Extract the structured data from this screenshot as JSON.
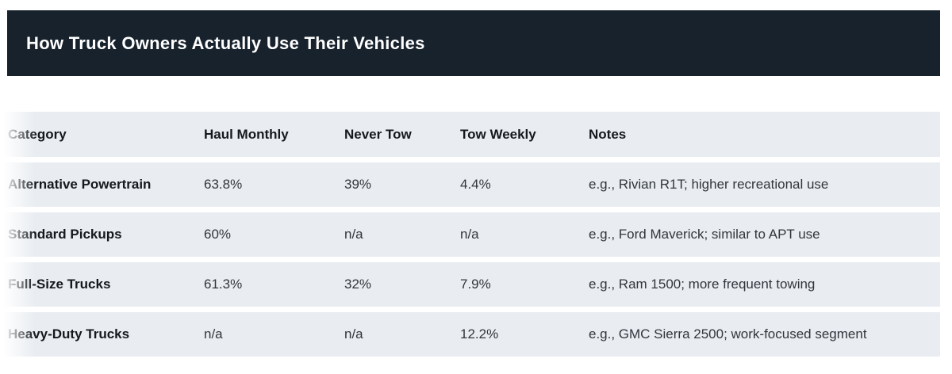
{
  "header": {
    "title": "How Truck Owners Actually Use Their Vehicles"
  },
  "table": {
    "columns": [
      "Category",
      "Haul Monthly",
      "Never Tow",
      "Tow Weekly",
      "Notes"
    ],
    "rows": [
      {
        "category": "Alternative Powertrain",
        "haul_monthly": "63.8%",
        "never_tow": "39%",
        "tow_weekly": "4.4%",
        "notes": "e.g., Rivian R1T; higher recreational use"
      },
      {
        "category": "Standard Pickups",
        "haul_monthly": "60%",
        "never_tow": "n/a",
        "tow_weekly": "n/a",
        "notes": "e.g., Ford Maverick; similar to APT use"
      },
      {
        "category": "Full-Size Trucks",
        "haul_monthly": "61.3%",
        "never_tow": "32%",
        "tow_weekly": "7.9%",
        "notes": "e.g., Ram 1500; more frequent towing"
      },
      {
        "category": "Heavy-Duty Trucks",
        "haul_monthly": "n/a",
        "never_tow": "n/a",
        "tow_weekly": "12.2%",
        "notes": "e.g., GMC Sierra 2500; work-focused segment"
      }
    ]
  },
  "colors": {
    "title_bar_bg": "#17222d",
    "title_text": "#ffffff",
    "row_bg": "#e9edf1",
    "heading_text": "#15191e",
    "body_text": "#31363c",
    "page_bg": "#ffffff"
  },
  "chart_data": {
    "type": "table",
    "title": "How Truck Owners Actually Use Their Vehicles",
    "columns": [
      "Category",
      "Haul Monthly",
      "Never Tow",
      "Tow Weekly",
      "Notes"
    ],
    "rows": [
      [
        "Alternative Powertrain",
        "63.8%",
        "39%",
        "4.4%",
        "e.g., Rivian R1T; higher recreational use"
      ],
      [
        "Standard Pickups",
        "60%",
        "n/a",
        "n/a",
        "e.g., Ford Maverick; similar to APT use"
      ],
      [
        "Full-Size Trucks",
        "61.3%",
        "32%",
        "7.9%",
        "e.g., Ram 1500; more frequent towing"
      ],
      [
        "Heavy-Duty Trucks",
        "n/a",
        "n/a",
        "12.2%",
        "e.g., GMC Sierra 2500; work-focused segment"
      ]
    ],
    "numeric_values_percent": {
      "haul_monthly": [
        63.8,
        60,
        61.3,
        null
      ],
      "never_tow": [
        39,
        null,
        32,
        null
      ],
      "tow_weekly": [
        4.4,
        null,
        7.9,
        12.2
      ]
    }
  }
}
